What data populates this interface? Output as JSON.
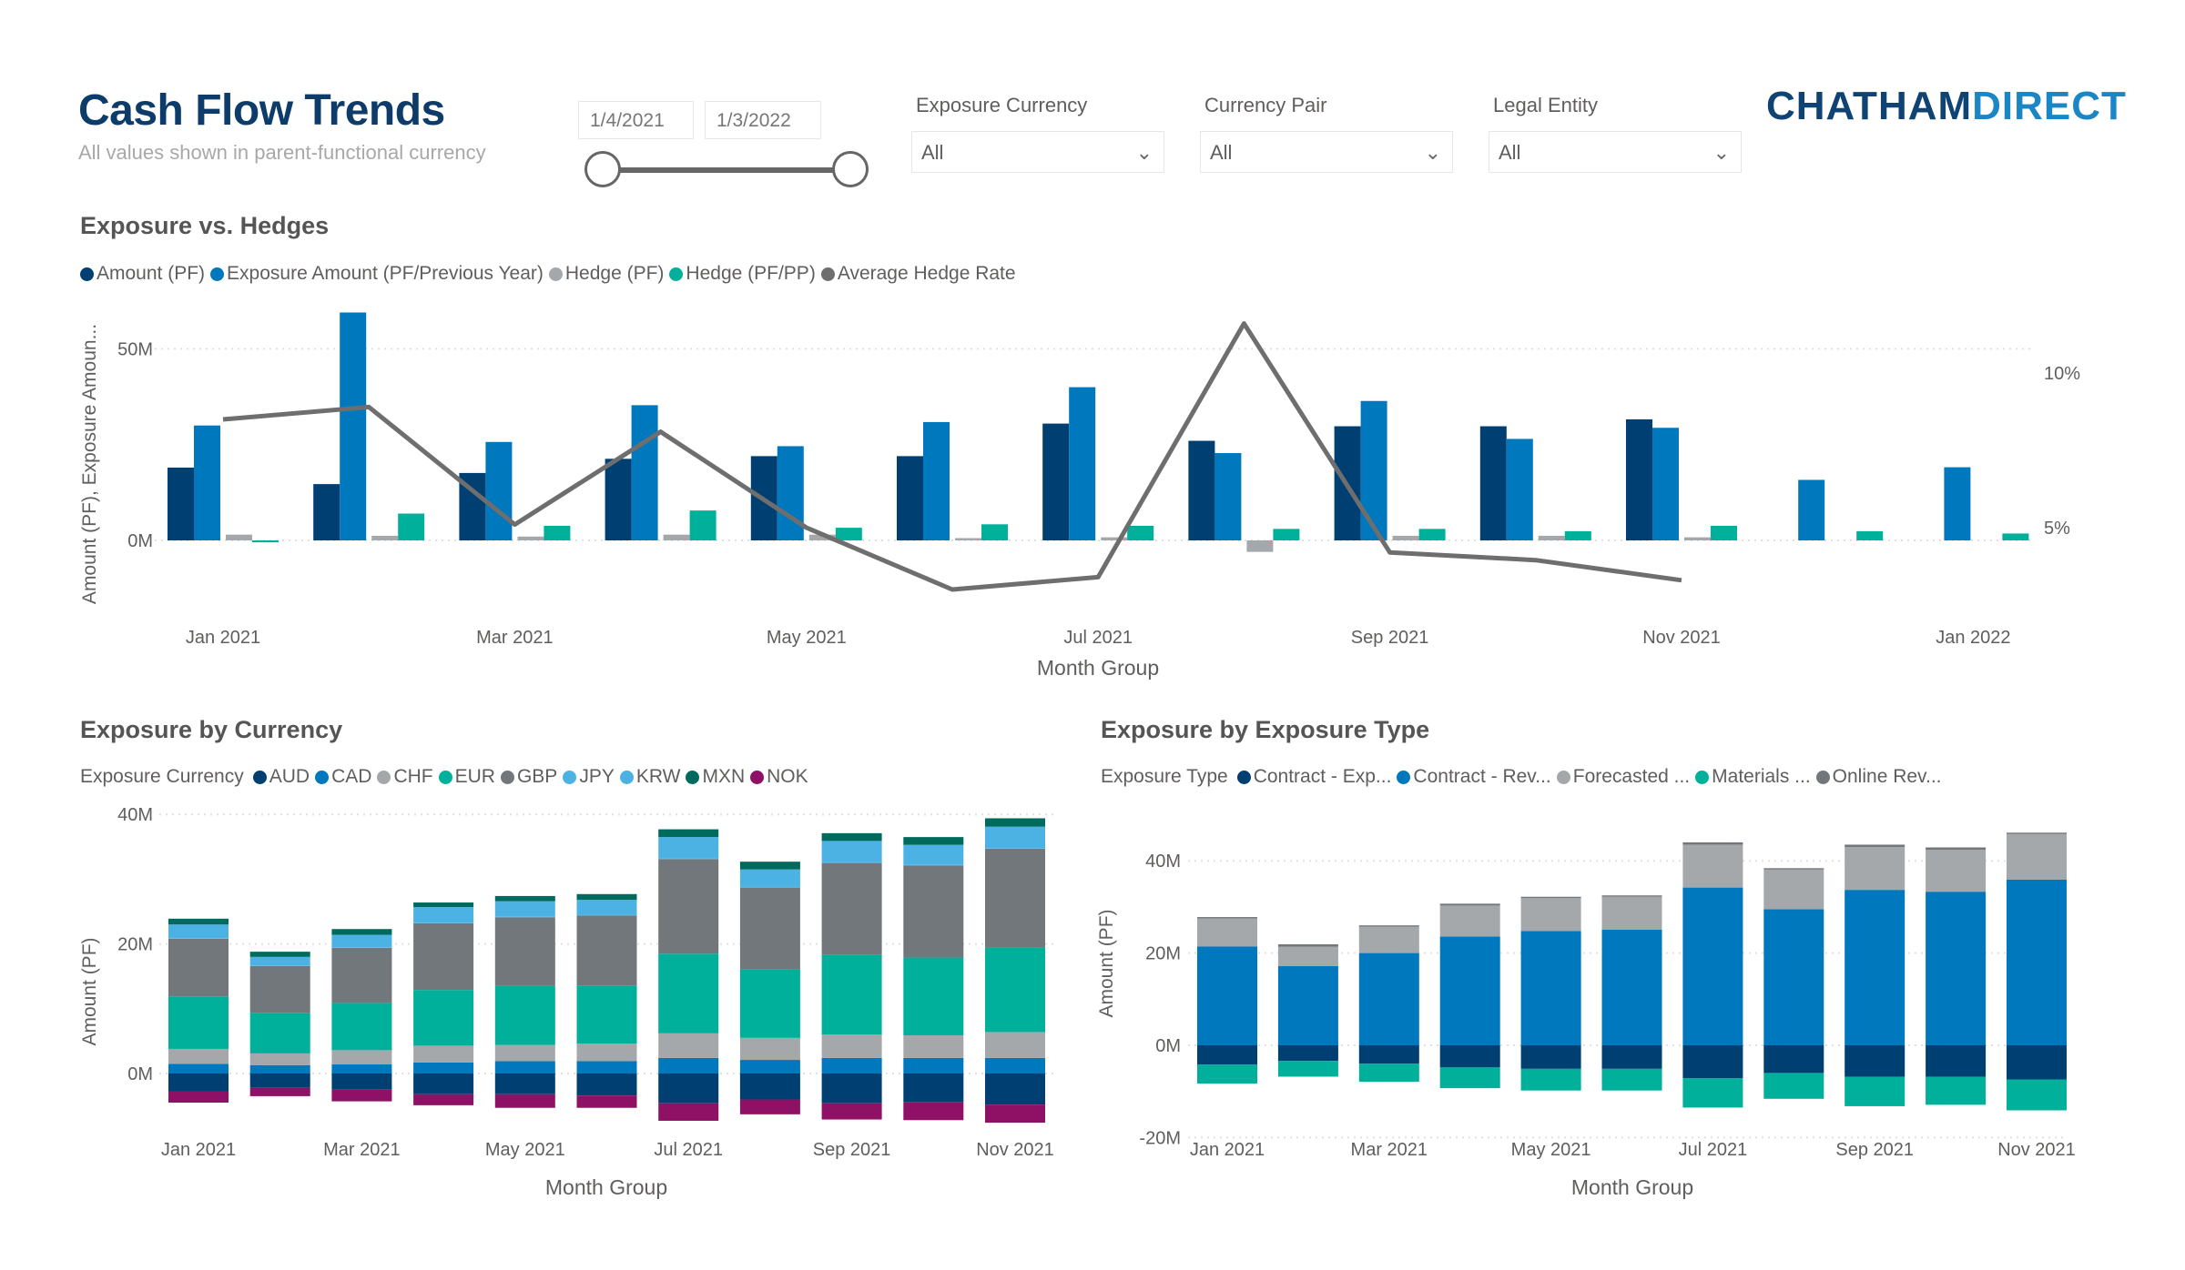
{
  "header": {
    "title": "Cash Flow Trends",
    "subtitle": "All values shown in parent-functional currency",
    "logo_part1": "CHATHAM",
    "logo_part2": "DIRECT"
  },
  "date_range": {
    "start": "1/4/2021",
    "end": "1/3/2022"
  },
  "filters": [
    {
      "label": "Exposure Currency",
      "value": "All"
    },
    {
      "label": "Currency Pair",
      "value": "All"
    },
    {
      "label": "Legal Entity",
      "value": "All"
    }
  ],
  "colors": {
    "navy": "#003f72",
    "blue": "#0078bd",
    "gray": "#a5a8ab",
    "teal": "#00b09b",
    "dark_gray": "#72777b",
    "light_blue": "#4cb2e4",
    "dark_teal": "#006b5d",
    "magenta": "#8e1166"
  },
  "chart_data": [
    {
      "title": "Exposure vs. Hedges",
      "type": "bar+line",
      "xlabel": "Month Group",
      "ylabel": "Amount (PF), Exposure Amoun...",
      "categories": [
        "Jan 2021",
        "Feb 2021",
        "Mar 2021",
        "Apr 2021",
        "May 2021",
        "Jun 2021",
        "Jul 2021",
        "Aug 2021",
        "Sep 2021",
        "Oct 2021",
        "Nov 2021",
        "Dec 2021",
        "Jan 2022"
      ],
      "tick_labels": [
        "Jan 2021",
        "",
        "Mar 2021",
        "",
        "May 2021",
        "",
        "Jul 2021",
        "",
        "Sep 2021",
        "",
        "Nov 2021",
        "",
        "Jan 2022"
      ],
      "y_ticks": [
        "0M",
        "50M"
      ],
      "y2_ticks": [
        "5%",
        "10%"
      ],
      "legend_position": "top-left",
      "series": [
        {
          "name": "Amount (PF)",
          "color": "#003f72",
          "values": [
            19,
            14.7,
            17.6,
            21.3,
            22,
            22,
            30.5,
            26,
            29.8,
            29.8,
            31.6,
            null,
            null
          ]
        },
        {
          "name": "Exposure Amount (PF/Previous Year)",
          "color": "#0078bd",
          "values": [
            30,
            59.5,
            25.7,
            35.3,
            24.6,
            30.9,
            40,
            22.8,
            36.4,
            26.5,
            29.4,
            15.8,
            19.1
          ]
        },
        {
          "name": "Hedge (PF)",
          "color": "#a5a8ab",
          "values": [
            1.5,
            1.2,
            1,
            1.5,
            1.5,
            0.6,
            0.8,
            -3,
            1.2,
            1.2,
            0.8,
            null,
            null
          ]
        },
        {
          "name": "Hedge (PF/PP)",
          "color": "#00b09b",
          "values": [
            -0.5,
            7,
            3.8,
            7.8,
            3.3,
            4.2,
            3.8,
            3,
            3,
            2.4,
            3.8,
            2.4,
            1.8
          ]
        },
        {
          "name": "Average Hedge Rate",
          "color": "#6e6e6e",
          "axis": "right",
          "unit": "%",
          "values": [
            8.5,
            8.9,
            5.1,
            8.1,
            5.0,
            3.0,
            3.4,
            11.6,
            4.2,
            3.95,
            3.3,
            null,
            null
          ]
        }
      ]
    },
    {
      "title": "Exposure by Currency",
      "type": "stacked-bar",
      "xlabel": "Month Group",
      "ylabel": "Amount (PF)",
      "legend_title": "Exposure Currency",
      "categories": [
        "Jan 2021",
        "Feb 2021",
        "Mar 2021",
        "Apr 2021",
        "May 2021",
        "Jun 2021",
        "Jul 2021",
        "Aug 2021",
        "Sep 2021",
        "Oct 2021",
        "Nov 2021"
      ],
      "tick_labels": [
        "Jan 2021",
        "",
        "Mar 2021",
        "",
        "May 2021",
        "",
        "Jul 2021",
        "",
        "Sep 2021",
        "",
        "Nov 2021"
      ],
      "y_ticks": [
        "0M",
        "20M",
        "40M"
      ],
      "series": [
        {
          "name": "AUD",
          "color": "#003f72",
          "values": [
            -2.8,
            -2.2,
            -2.5,
            -3.2,
            -3.2,
            -3.4,
            -4.6,
            -4.0,
            -4.6,
            -4.4,
            -4.8
          ]
        },
        {
          "name": "CAD",
          "color": "#0078bd",
          "values": [
            1.5,
            1.3,
            1.4,
            1.7,
            1.9,
            1.9,
            2.4,
            2.1,
            2.4,
            2.4,
            2.4
          ]
        },
        {
          "name": "CHF",
          "color": "#a5a8ab",
          "values": [
            2.3,
            1.8,
            2.2,
            2.6,
            2.5,
            2.7,
            3.8,
            3.4,
            3.6,
            3.5,
            4.0
          ]
        },
        {
          "name": "EUR",
          "color": "#00b09b",
          "values": [
            8.1,
            6.2,
            7.3,
            8.6,
            9.1,
            9.0,
            12.3,
            10.6,
            12.3,
            12.0,
            13.0
          ]
        },
        {
          "name": "GBP",
          "color": "#72777b",
          "values": [
            8.9,
            7.3,
            8.5,
            10.3,
            10.6,
            10.8,
            14.6,
            12.6,
            14.2,
            14.2,
            15.3
          ]
        },
        {
          "name": "JPY",
          "color": "#4cb2e4",
          "values": [
            0.1,
            0.1,
            0.1,
            0.1,
            0.1,
            0.1,
            0.1,
            0.1,
            0.1,
            0.1,
            0.1
          ]
        },
        {
          "name": "KRW",
          "color": "#4cb2e4",
          "values": [
            2.1,
            1.3,
            1.9,
            2.4,
            2.4,
            2.3,
            3.3,
            2.7,
            3.3,
            3.1,
            3.3
          ]
        },
        {
          "name": "MXN",
          "color": "#006b5d",
          "values": [
            0.9,
            0.8,
            0.9,
            0.7,
            0.8,
            0.9,
            1.2,
            1.2,
            1.2,
            1.2,
            1.3
          ]
        },
        {
          "name": "NOK",
          "color": "#8e1166",
          "values": [
            -1.7,
            -1.3,
            -1.8,
            -1.7,
            -2.1,
            -1.9,
            -2.7,
            -2.3,
            -2.5,
            -2.8,
            -2.8
          ]
        }
      ]
    },
    {
      "title": "Exposure by Exposure Type",
      "type": "stacked-bar",
      "xlabel": "Month Group",
      "ylabel": "Amount (PF)",
      "legend_title": "Exposure Type",
      "categories": [
        "Jan 2021",
        "Feb 2021",
        "Mar 2021",
        "Apr 2021",
        "May 2021",
        "Jun 2021",
        "Jul 2021",
        "Aug 2021",
        "Sep 2021",
        "Oct 2021",
        "Nov 2021"
      ],
      "tick_labels": [
        "Jan 2021",
        "",
        "Mar 2021",
        "",
        "May 2021",
        "",
        "Jul 2021",
        "",
        "Sep 2021",
        "",
        "Nov 2021"
      ],
      "y_ticks": [
        "-20M",
        "0M",
        "20M",
        "40M"
      ],
      "series": [
        {
          "name": "Contract - Exp...",
          "color": "#003f72",
          "values": [
            -4.2,
            -3.4,
            -4.0,
            -4.8,
            -5.1,
            -5.1,
            -7.1,
            -6.0,
            -6.8,
            -6.8,
            -7.4
          ]
        },
        {
          "name": "Contract - Rev...",
          "color": "#0078bd",
          "values": [
            21.4,
            17.2,
            20.0,
            23.6,
            24.8,
            25.1,
            34.2,
            29.5,
            33.7,
            33.3,
            35.9
          ]
        },
        {
          "name": "Forecasted ...",
          "color": "#a5a8ab",
          "values": [
            6.1,
            4.2,
            5.7,
            6.7,
            7.1,
            7.1,
            9.3,
            8.6,
            9.3,
            9.1,
            9.9
          ]
        },
        {
          "name": "Materials ...",
          "color": "#00b09b",
          "values": [
            -4.1,
            -3.4,
            -3.9,
            -4.5,
            -4.7,
            -4.7,
            -6.4,
            -5.6,
            -6.4,
            -6.1,
            -6.7
          ]
        },
        {
          "name": "Online Rev...",
          "color": "#72777b",
          "values": [
            0.3,
            0.5,
            0.3,
            0.4,
            0.3,
            0.3,
            0.5,
            0.3,
            0.5,
            0.5,
            0.3
          ]
        }
      ]
    }
  ]
}
